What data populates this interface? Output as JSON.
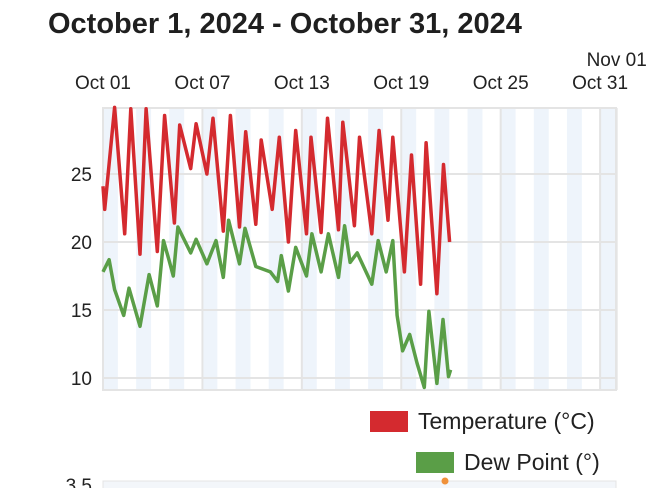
{
  "title": "October 1, 2024 - October 31, 2024",
  "chart_data": {
    "type": "line",
    "x_unit": "days since Oct 01 00:00",
    "xlim": [
      0,
      31
    ],
    "ylim": [
      9.1,
      29.9
    ],
    "grid": true,
    "x_tick_labels": [
      {
        "day": 0,
        "label": "Oct 01"
      },
      {
        "day": 6,
        "label": "Oct 07"
      },
      {
        "day": 12,
        "label": "Oct 13"
      },
      {
        "day": 18,
        "label": "Oct 19"
      },
      {
        "day": 24,
        "label": "Oct 25"
      },
      {
        "day": 30,
        "label": "Oct 31"
      },
      {
        "day": 31,
        "label": "Nov 01"
      }
    ],
    "y_ticks": [
      10,
      15,
      20,
      25
    ],
    "legend_position": "bottom-right",
    "series": [
      {
        "name": "Temperature (°C)",
        "color": "#d42a2f",
        "points": [
          [
            0,
            24.1
          ],
          [
            0.1,
            22.4
          ],
          [
            0.7,
            29.9
          ],
          [
            1.31,
            20.6
          ],
          [
            1.68,
            29.8
          ],
          [
            2.23,
            19.1
          ],
          [
            2.6,
            29.8
          ],
          [
            3.28,
            19.3
          ],
          [
            3.72,
            29.3
          ],
          [
            4.31,
            21.4
          ],
          [
            4.63,
            28.6
          ],
          [
            5.29,
            25.4
          ],
          [
            5.62,
            28.7
          ],
          [
            6.27,
            25.0
          ],
          [
            6.64,
            29.1
          ],
          [
            7.26,
            20.8
          ],
          [
            7.69,
            29.3
          ],
          [
            8.24,
            21.1
          ],
          [
            8.61,
            28.1
          ],
          [
            9.22,
            21.3
          ],
          [
            9.55,
            27.5
          ],
          [
            10.21,
            22.4
          ],
          [
            10.64,
            27.7
          ],
          [
            11.19,
            20.0
          ],
          [
            11.63,
            28.2
          ],
          [
            12.28,
            20.6
          ],
          [
            12.55,
            27.7
          ],
          [
            13.16,
            20.7
          ],
          [
            13.55,
            29.1
          ],
          [
            14.21,
            20.9
          ],
          [
            14.47,
            28.8
          ],
          [
            15.17,
            21.2
          ],
          [
            15.48,
            27.7
          ],
          [
            16.22,
            20.6
          ],
          [
            16.66,
            28.2
          ],
          [
            17.2,
            21.6
          ],
          [
            17.49,
            27.7
          ],
          [
            18.19,
            17.8
          ],
          [
            18.62,
            26.4
          ],
          [
            19.17,
            16.9
          ],
          [
            19.5,
            27.3
          ],
          [
            20.15,
            16.2
          ],
          [
            20.55,
            25.7
          ],
          [
            20.92,
            20.0
          ]
        ]
      },
      {
        "name": "Dew Point (°)",
        "color": "#5a9e47",
        "points": [
          [
            0,
            17.8
          ],
          [
            0.37,
            18.7
          ],
          [
            0.7,
            16.5
          ],
          [
            1.25,
            14.6
          ],
          [
            1.57,
            16.6
          ],
          [
            2.23,
            13.8
          ],
          [
            2.78,
            17.6
          ],
          [
            3.28,
            15.3
          ],
          [
            3.65,
            20.1
          ],
          [
            3.98,
            18.7
          ],
          [
            4.24,
            17.5
          ],
          [
            4.52,
            21.1
          ],
          [
            5.29,
            19.2
          ],
          [
            5.62,
            20.2
          ],
          [
            6.27,
            18.4
          ],
          [
            6.82,
            20.1
          ],
          [
            7.26,
            17.4
          ],
          [
            7.58,
            21.6
          ],
          [
            8.24,
            18.4
          ],
          [
            8.57,
            21.0
          ],
          [
            9.22,
            18.2
          ],
          [
            10.1,
            17.8
          ],
          [
            10.54,
            17.1
          ],
          [
            10.76,
            19.0
          ],
          [
            11.19,
            16.4
          ],
          [
            11.63,
            19.6
          ],
          [
            12.28,
            17.5
          ],
          [
            12.61,
            20.6
          ],
          [
            13.16,
            17.8
          ],
          [
            13.6,
            20.6
          ],
          [
            14.21,
            17.4
          ],
          [
            14.58,
            21.2
          ],
          [
            14.91,
            18.5
          ],
          [
            15.34,
            19.2
          ],
          [
            16.22,
            16.9
          ],
          [
            16.61,
            20.1
          ],
          [
            17.09,
            17.8
          ],
          [
            17.49,
            20.1
          ],
          [
            17.75,
            14.6
          ],
          [
            18.08,
            12.0
          ],
          [
            18.51,
            13.2
          ],
          [
            18.95,
            11.1
          ],
          [
            19.39,
            9.3
          ],
          [
            19.67,
            14.9
          ],
          [
            20.15,
            9.6
          ],
          [
            20.52,
            14.3
          ],
          [
            20.85,
            10.1
          ],
          [
            20.98,
            10.6
          ]
        ]
      }
    ],
    "next_chart": {
      "y_tick_label": "3.5",
      "marker_color": "#f0913a"
    }
  }
}
